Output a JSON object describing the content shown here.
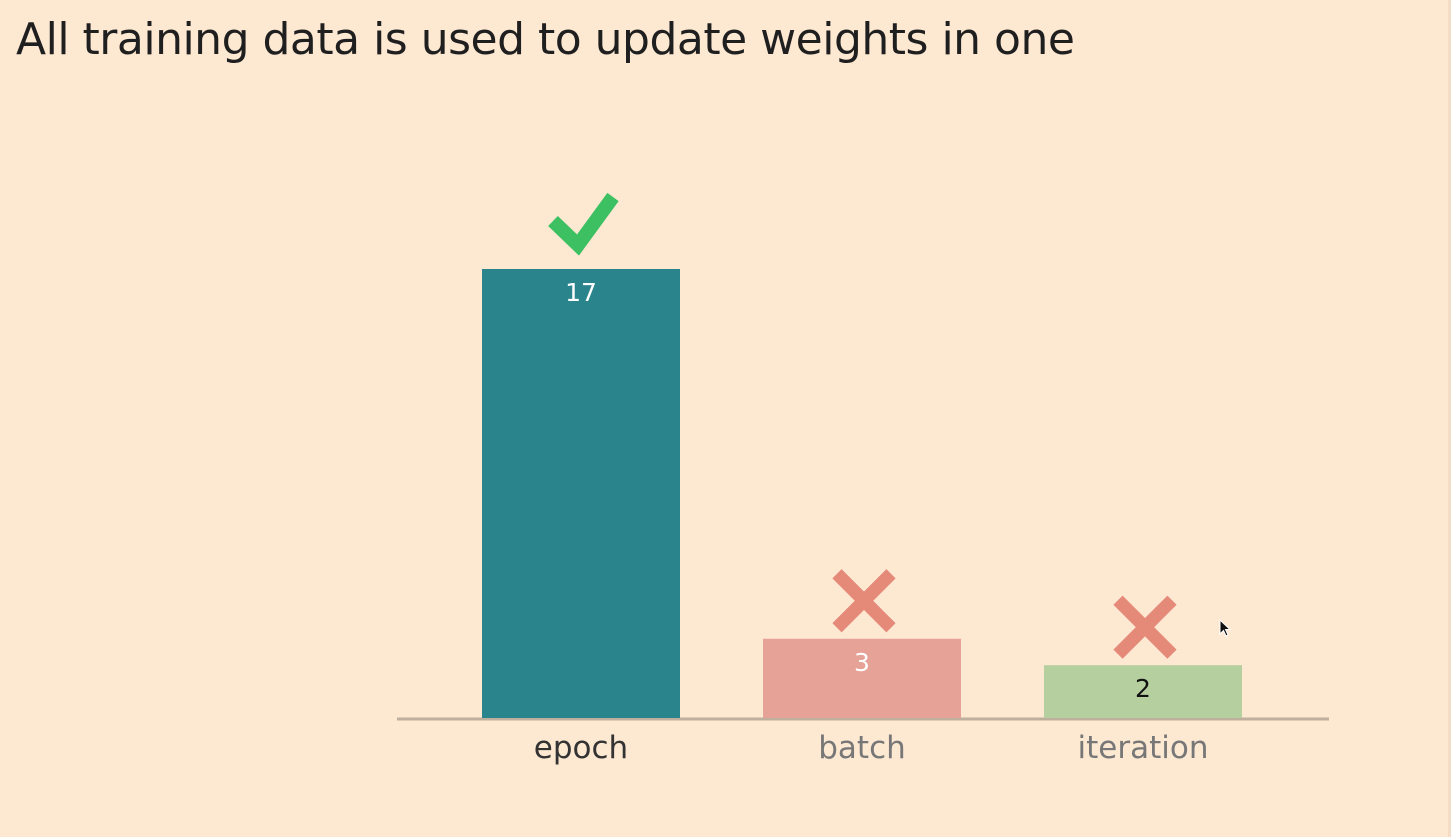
{
  "title": "All training data is used to update weights in one",
  "chart_data": {
    "type": "bar",
    "categories": [
      "epoch",
      "batch",
      "iteration"
    ],
    "values": [
      17,
      3,
      2
    ],
    "value_labels": [
      "17",
      "3",
      "2"
    ],
    "bar_colors": [
      "#2a848c",
      "#e6a296",
      "#b5cf9f"
    ],
    "value_label_colors": [
      "#ffffff",
      "#ffffff",
      "#111111"
    ],
    "category_label_colors": [
      "#333333",
      "#777777",
      "#777777"
    ],
    "markers": [
      "check-icon",
      "cross-icon",
      "cross-icon"
    ],
    "marker_colors": [
      "#3cc062",
      "#e58979",
      "#e58979"
    ],
    "baseline_color": "#bfb09e",
    "ylim": [
      0,
      17
    ]
  }
}
